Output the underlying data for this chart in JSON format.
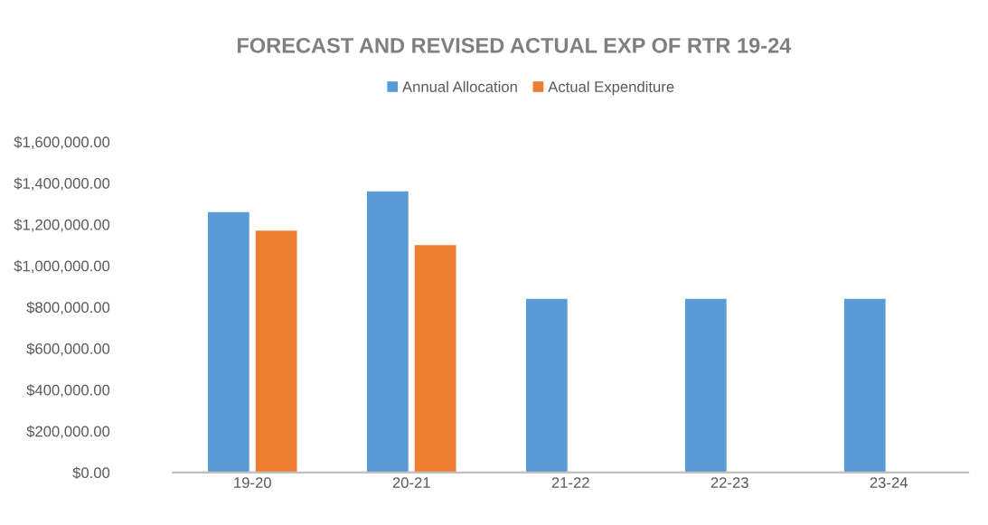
{
  "chart_data": {
    "type": "bar",
    "title": "FORECAST AND REVISED ACTUAL EXP OF RTR 19-24",
    "categories": [
      "19-20",
      "20-21",
      "21-22",
      "22-23",
      "23-24"
    ],
    "series": [
      {
        "name": "Annual Allocation",
        "color": "#5b9bd5",
        "values": [
          1260000,
          1360000,
          840000,
          840000,
          840000
        ]
      },
      {
        "name": "Actual Expenditure",
        "color": "#ed7d31",
        "values": [
          1170000,
          1100000,
          null,
          null,
          null
        ]
      }
    ],
    "ylim": [
      0,
      1600000
    ],
    "yticks": [
      {
        "value": 0,
        "label": "$0.00"
      },
      {
        "value": 200000,
        "label": "$200,000.00"
      },
      {
        "value": 400000,
        "label": "$400,000.00"
      },
      {
        "value": 600000,
        "label": "$600,000.00"
      },
      {
        "value": 800000,
        "label": "$800,000.00"
      },
      {
        "value": 1000000,
        "label": "$1,000,000.00"
      },
      {
        "value": 1200000,
        "label": "$1,200,000.00"
      },
      {
        "value": 1400000,
        "label": "$1,400,000.00"
      },
      {
        "value": 1600000,
        "label": "$1,600,000.00"
      }
    ],
    "grid": false,
    "legend": "top"
  }
}
